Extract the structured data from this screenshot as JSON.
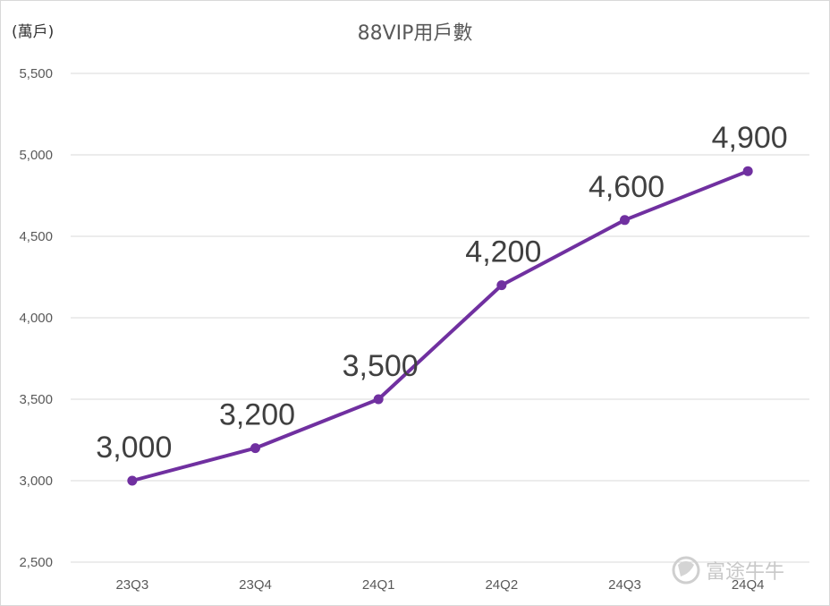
{
  "chart_data": {
    "type": "line",
    "title": "88VIP用戶數",
    "ylabel": "(萬戶)",
    "xlabel": "",
    "categories": [
      "23Q3",
      "23Q4",
      "24Q1",
      "24Q2",
      "24Q3",
      "24Q4"
    ],
    "series": [
      {
        "values": [
          3000,
          3200,
          3500,
          4200,
          4600,
          4900
        ]
      }
    ],
    "data_labels": [
      "3,000",
      "3,200",
      "3,500",
      "4,200",
      "4,600",
      "4,900"
    ],
    "ylim": [
      2500,
      5500
    ],
    "yticks": [
      2500,
      3000,
      3500,
      4000,
      4500,
      5000,
      5500
    ],
    "ytick_labels": [
      "2,500",
      "3,000",
      "3,500",
      "4,000",
      "4,500",
      "5,000",
      "5,500"
    ],
    "grid": true,
    "legend": "none",
    "colors": {
      "line": "#7030a0",
      "grid": "#d9d9d9",
      "text": "#595959"
    }
  },
  "watermark": {
    "text": "富途牛牛",
    "icon": "futu-logo-icon"
  }
}
